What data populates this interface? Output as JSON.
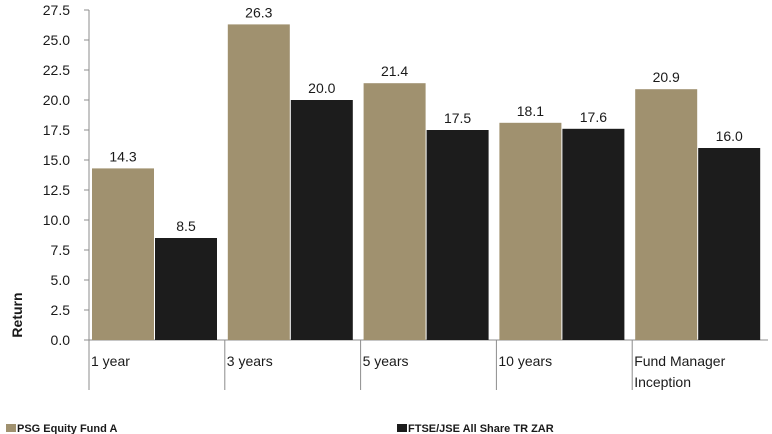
{
  "chart_data": {
    "type": "bar",
    "categories": [
      "1 year",
      "3 years",
      "5 years",
      "10 years",
      "Fund Manager Inception"
    ],
    "series": [
      {
        "name": "PSG Equity Fund A",
        "color": "#a0916f",
        "values": [
          14.3,
          26.3,
          21.4,
          18.1,
          20.9
        ]
      },
      {
        "name": "FTSE/JSE All Share TR ZAR",
        "color": "#1c1c1c",
        "values": [
          8.5,
          20.0,
          17.5,
          17.6,
          16.0
        ]
      }
    ],
    "ylabel": "Return",
    "xlabel": "",
    "ylim": [
      0,
      27.5
    ],
    "yticks": [
      0.0,
      2.5,
      5.0,
      7.5,
      10.0,
      12.5,
      15.0,
      17.5,
      20.0,
      22.5,
      25.0,
      27.5
    ],
    "legend_position": "bottom",
    "grid": false
  }
}
